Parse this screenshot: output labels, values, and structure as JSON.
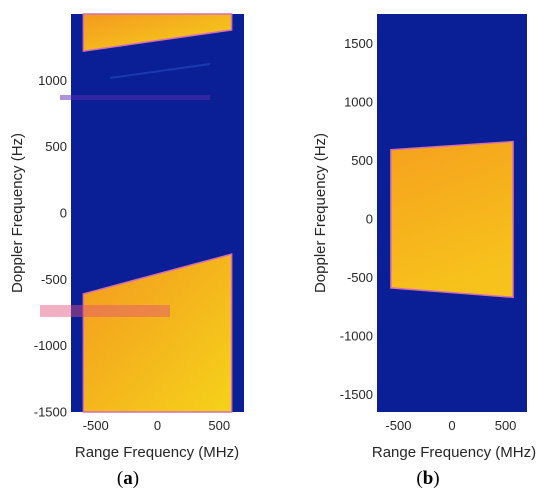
{
  "chart_data": [
    {
      "type": "heatmap",
      "panel_label": {
        "open": "(",
        "letter": "a",
        "close": ")"
      },
      "xlabel": "Range Frequency (MHz)",
      "ylabel": "Doppler Frequency (Hz)",
      "xlim": [
        -700,
        700
      ],
      "ylim": [
        -1500,
        1500
      ],
      "xticks": [
        -500,
        0,
        500
      ],
      "yticks": [
        -1500,
        -1000,
        -500,
        0,
        500,
        1000
      ],
      "background_color": "#0a1f96",
      "fill_color": "#f7b21c",
      "regions": [
        {
          "name": "upper",
          "polygon": [
            [
              -600,
              1500
            ],
            [
              600,
              1500
            ],
            [
              600,
              1380
            ],
            [
              -600,
              1220
            ]
          ]
        },
        {
          "name": "lower",
          "polygon": [
            [
              -600,
              -610
            ],
            [
              600,
              -310
            ],
            [
              600,
              -1500
            ],
            [
              -600,
              -1500
            ]
          ]
        }
      ]
    },
    {
      "type": "heatmap",
      "panel_label": {
        "open": "(",
        "letter": "b",
        "close": ")"
      },
      "xlabel": "Range Frequency (MHz)",
      "ylabel": "Doppler Frequency (Hz)",
      "xlim": [
        -700,
        700
      ],
      "ylim": [
        -1650,
        1750
      ],
      "xticks": [
        -500,
        0,
        500
      ],
      "yticks": [
        -1500,
        -1000,
        -500,
        0,
        500,
        1000,
        1500
      ],
      "background_color": "#0a1f96",
      "fill_color": "#f7b21c",
      "regions": [
        {
          "name": "main",
          "polygon": [
            [
              -570,
              590
            ],
            [
              570,
              660
            ],
            [
              570,
              -670
            ],
            [
              -570,
              -590
            ]
          ]
        }
      ]
    }
  ]
}
